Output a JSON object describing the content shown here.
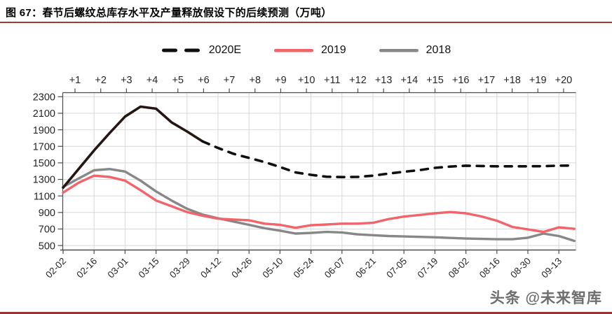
{
  "header": {
    "title": "图 67：春节后螺纹总库存水平及产量释放假设下的后续预测（万吨）"
  },
  "legend": [
    {
      "label": "2020E",
      "style": "dashed",
      "color": "#0f0f0f"
    },
    {
      "label": "2019",
      "style": "solid",
      "color": "#f0646a"
    },
    {
      "label": "2018",
      "style": "solid",
      "color": "#878787"
    }
  ],
  "watermark": "头条 @未来智库",
  "colors": {
    "title_rule": "#a23a33",
    "bottom_rule": "#963434",
    "grid": "#d8d8d8",
    "axis": "#4d4d4d",
    "tick_label": "#262626",
    "series_2020e_dashed": "#0f0f0f",
    "series_2020e_solid": "#241713",
    "series_2019": "#f0646a",
    "series_2018": "#878787"
  },
  "chart_data": {
    "type": "line",
    "title": "春节后螺纹总库存水平及产量释放假设下的后续预测（万吨）",
    "unit": "万吨",
    "grid": true,
    "legend_position": "top-center",
    "top_axis_labels": [
      "+1",
      "+2",
      "+3",
      "+4",
      "+5",
      "+6",
      "+7",
      "+8",
      "+9",
      "+10",
      "+11",
      "+12",
      "+13",
      "+14",
      "+15",
      "+16",
      "+17",
      "+18",
      "+19",
      "+20"
    ],
    "x_tick_labels": [
      "02-02",
      "02-16",
      "03-01",
      "03-15",
      "03-29",
      "04-12",
      "04-26",
      "05-10",
      "05-24",
      "06-07",
      "06-21",
      "07-05",
      "07-19",
      "08-02",
      "08-16",
      "08-30",
      "09-13"
    ],
    "x_note": "data points are weekly starting 02-02; bottom labels mark every second week",
    "ylim": [
      500,
      2300
    ],
    "ytick_step": 200,
    "yticks": [
      500,
      700,
      900,
      1100,
      1300,
      1500,
      1700,
      1900,
      2100,
      2300
    ],
    "series": [
      {
        "name": "2018",
        "color": "#878787",
        "dashed": false,
        "values": [
          1210,
          1310,
          1410,
          1425,
          1395,
          1285,
          1155,
          1045,
          945,
          875,
          830,
          790,
          750,
          710,
          680,
          645,
          652,
          665,
          658,
          635,
          625,
          615,
          610,
          605,
          600,
          592,
          585,
          580,
          576,
          576,
          595,
          645,
          615,
          556
        ]
      },
      {
        "name": "2019",
        "color": "#f0646a",
        "dashed": false,
        "values": [
          1140,
          1260,
          1345,
          1330,
          1285,
          1170,
          1045,
          975,
          905,
          860,
          825,
          815,
          805,
          765,
          750,
          715,
          745,
          755,
          765,
          765,
          775,
          820,
          850,
          870,
          890,
          905,
          890,
          852,
          800,
          725,
          695,
          665,
          720,
          702
        ]
      },
      {
        "name": "2020E",
        "color": "#0f0f0f",
        "dashed": true,
        "solid_until_index": 9,
        "values": [
          1200,
          1425,
          1650,
          1860,
          2060,
          2180,
          2155,
          1990,
          1880,
          1760,
          1680,
          1610,
          1560,
          1510,
          1450,
          1385,
          1355,
          1332,
          1328,
          1330,
          1345,
          1370,
          1392,
          1412,
          1440,
          1455,
          1466,
          1462,
          1458,
          1458,
          1458,
          1460,
          1466,
          1468
        ]
      }
    ]
  }
}
